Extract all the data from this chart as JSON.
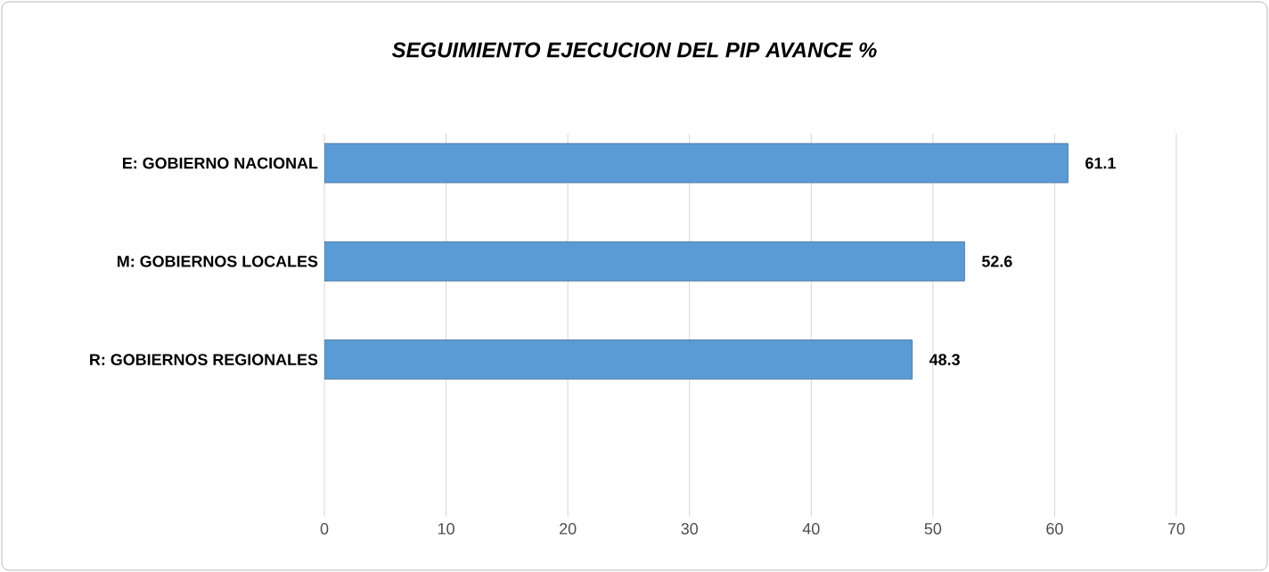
{
  "chart_data": {
    "type": "bar",
    "orientation": "horizontal",
    "title": "SEGUIMIENTO EJECUCION DEL PIP AVANCE %",
    "categories": [
      "E: GOBIERNO NACIONAL",
      "M: GOBIERNOS LOCALES",
      "R: GOBIERNOS REGIONALES"
    ],
    "values": [
      61.1,
      52.6,
      48.3
    ],
    "color": "#5b9bd5",
    "data_labels": true,
    "xlim": [
      0,
      70
    ],
    "xticks": [
      0,
      10,
      20,
      30,
      40,
      50,
      60,
      70
    ],
    "grid": "x"
  }
}
